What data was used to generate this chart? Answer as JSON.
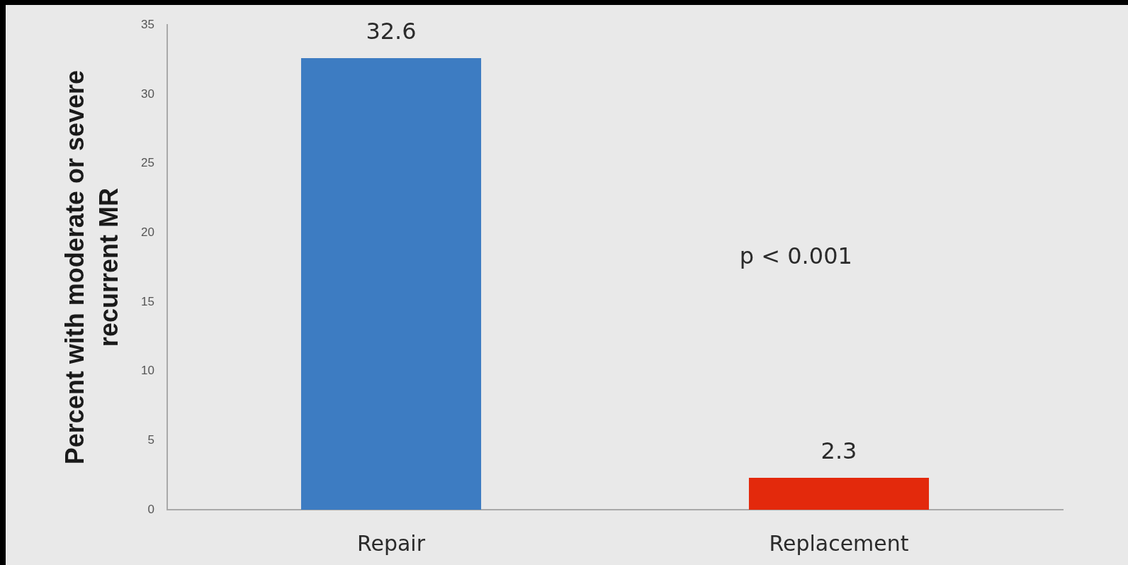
{
  "chart_data": {
    "type": "bar",
    "categories": [
      "Repair",
      "Replacement"
    ],
    "values": [
      32.6,
      2.3
    ],
    "colors": [
      "#3d7cc2",
      "#e3290c"
    ],
    "ylabel": "Percent with moderate or severe recurrent MR",
    "ylim": [
      0,
      35
    ],
    "yticks": [
      0,
      5,
      10,
      15,
      20,
      25,
      30,
      35
    ],
    "data_labels": true,
    "annotations": [
      "p < 0.001"
    ]
  }
}
